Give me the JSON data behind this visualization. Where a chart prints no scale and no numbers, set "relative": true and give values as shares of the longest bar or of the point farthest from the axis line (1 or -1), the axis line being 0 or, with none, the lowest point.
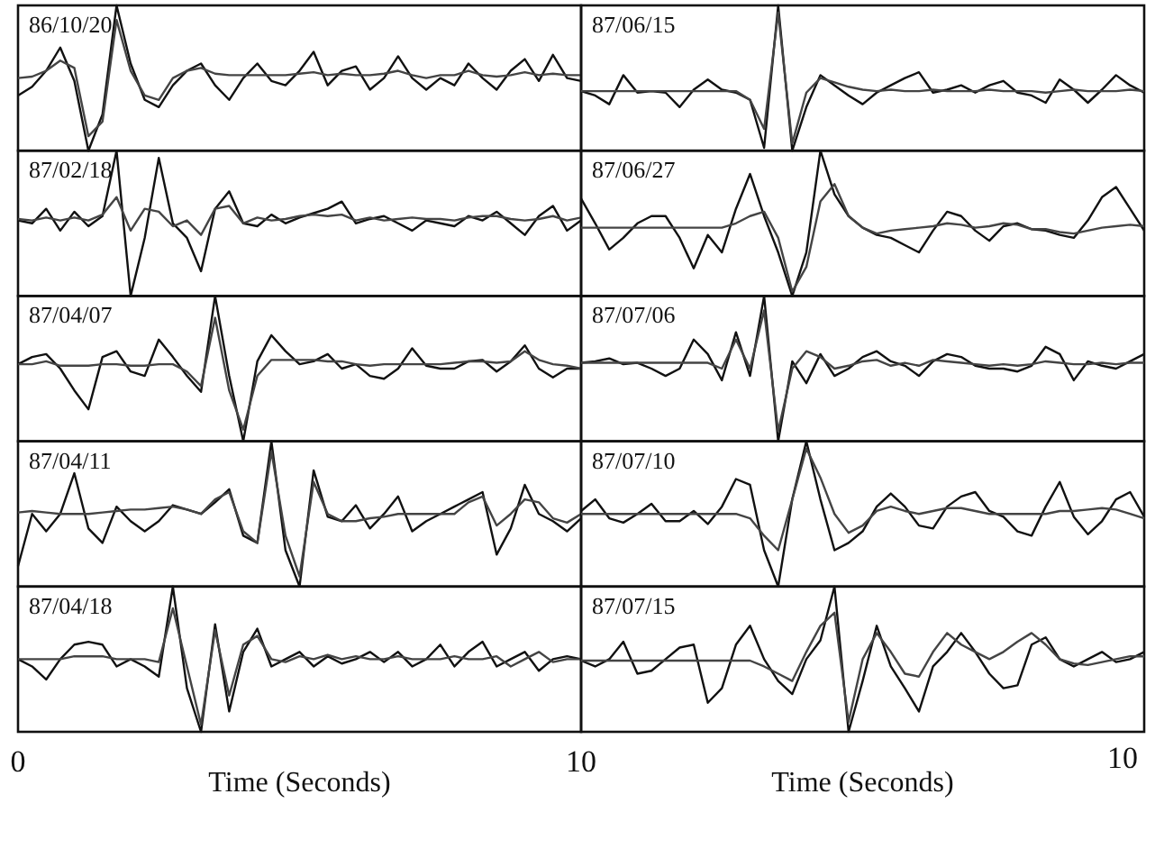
{
  "chart_data": [
    {
      "type": "line",
      "title": "86/10/20",
      "relative": true,
      "categories": [
        null,
        null,
        null,
        null,
        null,
        null,
        null,
        null,
        null,
        null,
        null,
        null,
        null,
        null,
        null,
        null,
        null,
        null,
        null,
        null,
        null,
        null,
        null,
        null,
        null,
        null,
        null,
        null,
        null,
        null,
        null,
        null,
        null,
        null,
        null,
        null,
        null,
        null,
        null,
        null,
        null
      ],
      "series": [
        {
          "color": "#111111",
          "values": [
            0.38,
            0.44,
            0.55,
            0.71,
            0.48,
            0.0,
            0.25,
            1.0,
            0.6,
            0.35,
            0.3,
            0.45,
            0.55,
            0.6,
            0.45,
            0.35,
            0.5,
            0.6,
            0.48,
            0.45,
            0.55,
            0.68,
            0.45,
            0.55,
            0.58,
            0.42,
            0.5,
            0.65,
            0.5,
            0.42,
            0.5,
            0.45,
            0.6,
            0.5,
            0.42,
            0.55,
            0.63,
            0.48,
            0.66,
            0.5,
            0.48
          ]
        },
        {
          "color": "#444444",
          "values": [
            0.5,
            0.51,
            0.55,
            0.62,
            0.57,
            0.1,
            0.2,
            0.9,
            0.55,
            0.38,
            0.35,
            0.5,
            0.55,
            0.57,
            0.53,
            0.52,
            0.52,
            0.52,
            0.52,
            0.52,
            0.53,
            0.54,
            0.52,
            0.53,
            0.52,
            0.52,
            0.53,
            0.55,
            0.52,
            0.5,
            0.52,
            0.52,
            0.55,
            0.52,
            0.51,
            0.52,
            0.54,
            0.52,
            0.53,
            0.52,
            0.52
          ]
        }
      ]
    },
    {
      "type": "line",
      "title": "87/06/15",
      "relative": true,
      "categories": [
        null,
        null,
        null,
        null,
        null,
        null,
        null,
        null,
        null,
        null,
        null,
        null,
        null,
        null,
        null,
        null,
        null,
        null,
        null,
        null,
        null,
        null,
        null,
        null,
        null,
        null,
        null,
        null,
        null,
        null,
        null,
        null,
        null,
        null,
        null,
        null,
        null,
        null,
        null,
        null,
        null
      ],
      "series": [
        {
          "color": "#111111",
          "values": [
            0.41,
            0.38,
            0.32,
            0.52,
            0.4,
            0.41,
            0.4,
            0.3,
            0.42,
            0.49,
            0.42,
            0.4,
            0.35,
            0.02,
            1.0,
            0.0,
            0.3,
            0.52,
            0.45,
            0.38,
            0.32,
            0.4,
            0.45,
            0.5,
            0.54,
            0.4,
            0.42,
            0.45,
            0.4,
            0.45,
            0.48,
            0.4,
            0.38,
            0.33,
            0.49,
            0.42,
            0.33,
            0.42,
            0.52,
            0.45,
            0.4
          ]
        },
        {
          "color": "#444444",
          "values": [
            0.41,
            0.41,
            0.41,
            0.41,
            0.41,
            0.41,
            0.41,
            0.41,
            0.41,
            0.41,
            0.41,
            0.41,
            0.35,
            0.15,
            0.95,
            0.05,
            0.4,
            0.5,
            0.47,
            0.44,
            0.42,
            0.41,
            0.42,
            0.41,
            0.41,
            0.42,
            0.41,
            0.41,
            0.41,
            0.42,
            0.41,
            0.41,
            0.41,
            0.4,
            0.41,
            0.42,
            0.41,
            0.41,
            0.41,
            0.42,
            0.41
          ]
        }
      ]
    },
    {
      "type": "line",
      "title": "87/02/18",
      "relative": true,
      "categories": [
        null,
        null,
        null,
        null,
        null,
        null,
        null,
        null,
        null,
        null,
        null,
        null,
        null,
        null,
        null,
        null,
        null,
        null,
        null,
        null,
        null,
        null,
        null,
        null,
        null,
        null,
        null,
        null,
        null,
        null,
        null,
        null,
        null,
        null,
        null,
        null,
        null,
        null,
        null,
        null,
        null
      ],
      "series": [
        {
          "color": "#111111",
          "values": [
            0.52,
            0.5,
            0.6,
            0.45,
            0.58,
            0.48,
            0.55,
            1.0,
            0.0,
            0.4,
            0.95,
            0.5,
            0.4,
            0.17,
            0.6,
            0.72,
            0.5,
            0.48,
            0.56,
            0.5,
            0.54,
            0.57,
            0.6,
            0.65,
            0.5,
            0.53,
            0.55,
            0.5,
            0.45,
            0.52,
            0.5,
            0.48,
            0.55,
            0.52,
            0.58,
            0.5,
            0.42,
            0.55,
            0.62,
            0.45,
            0.52
          ]
        },
        {
          "color": "#444444",
          "values": [
            0.53,
            0.52,
            0.54,
            0.52,
            0.54,
            0.52,
            0.56,
            0.68,
            0.45,
            0.6,
            0.58,
            0.48,
            0.52,
            0.42,
            0.6,
            0.62,
            0.5,
            0.54,
            0.52,
            0.53,
            0.55,
            0.56,
            0.55,
            0.56,
            0.52,
            0.54,
            0.52,
            0.53,
            0.54,
            0.53,
            0.53,
            0.52,
            0.54,
            0.55,
            0.55,
            0.53,
            0.52,
            0.53,
            0.55,
            0.52,
            0.54
          ]
        }
      ]
    },
    {
      "type": "line",
      "title": "87/06/27",
      "relative": true,
      "categories": [
        null,
        null,
        null,
        null,
        null,
        null,
        null,
        null,
        null,
        null,
        null,
        null,
        null,
        null,
        null,
        null,
        null,
        null,
        null,
        null,
        null,
        null,
        null,
        null,
        null,
        null,
        null,
        null,
        null,
        null,
        null,
        null,
        null,
        null,
        null,
        null,
        null,
        null,
        null,
        null,
        null
      ],
      "series": [
        {
          "color": "#111111",
          "values": [
            0.67,
            0.5,
            0.32,
            0.4,
            0.5,
            0.55,
            0.55,
            0.4,
            0.19,
            0.42,
            0.3,
            0.6,
            0.84,
            0.55,
            0.3,
            0.0,
            0.3,
            1.0,
            0.7,
            0.55,
            0.47,
            0.42,
            0.4,
            0.35,
            0.3,
            0.45,
            0.58,
            0.55,
            0.45,
            0.38,
            0.48,
            0.5,
            0.46,
            0.45,
            0.42,
            0.4,
            0.52,
            0.68,
            0.75,
            0.6,
            0.45
          ]
        },
        {
          "color": "#444444",
          "values": [
            0.47,
            0.47,
            0.47,
            0.47,
            0.47,
            0.47,
            0.47,
            0.47,
            0.47,
            0.47,
            0.47,
            0.5,
            0.55,
            0.58,
            0.4,
            0.03,
            0.2,
            0.65,
            0.77,
            0.55,
            0.47,
            0.43,
            0.45,
            0.46,
            0.47,
            0.48,
            0.5,
            0.49,
            0.47,
            0.48,
            0.5,
            0.49,
            0.46,
            0.46,
            0.44,
            0.43,
            0.45,
            0.47,
            0.48,
            0.49,
            0.48
          ]
        }
      ]
    },
    {
      "type": "line",
      "title": "87/04/07",
      "relative": true,
      "categories": [
        null,
        null,
        null,
        null,
        null,
        null,
        null,
        null,
        null,
        null,
        null,
        null,
        null,
        null,
        null,
        null,
        null,
        null,
        null,
        null,
        null,
        null,
        null,
        null,
        null,
        null,
        null,
        null,
        null,
        null,
        null,
        null,
        null,
        null,
        null,
        null,
        null,
        null,
        null,
        null,
        null
      ],
      "series": [
        {
          "color": "#111111",
          "values": [
            0.53,
            0.58,
            0.6,
            0.5,
            0.35,
            0.22,
            0.58,
            0.62,
            0.48,
            0.45,
            0.7,
            0.58,
            0.45,
            0.34,
            1.0,
            0.45,
            0.0,
            0.55,
            0.73,
            0.62,
            0.53,
            0.55,
            0.6,
            0.5,
            0.53,
            0.45,
            0.43,
            0.5,
            0.64,
            0.52,
            0.5,
            0.5,
            0.55,
            0.56,
            0.48,
            0.55,
            0.66,
            0.5,
            0.44,
            0.5,
            0.5
          ]
        },
        {
          "color": "#444444",
          "values": [
            0.53,
            0.53,
            0.55,
            0.52,
            0.52,
            0.52,
            0.53,
            0.53,
            0.52,
            0.52,
            0.53,
            0.53,
            0.48,
            0.38,
            0.85,
            0.35,
            0.08,
            0.45,
            0.56,
            0.56,
            0.56,
            0.56,
            0.55,
            0.55,
            0.53,
            0.52,
            0.53,
            0.53,
            0.53,
            0.53,
            0.53,
            0.54,
            0.55,
            0.55,
            0.54,
            0.55,
            0.62,
            0.56,
            0.53,
            0.52,
            0.5
          ]
        }
      ]
    },
    {
      "type": "line",
      "title": "87/07/06",
      "relative": true,
      "categories": [
        null,
        null,
        null,
        null,
        null,
        null,
        null,
        null,
        null,
        null,
        null,
        null,
        null,
        null,
        null,
        null,
        null,
        null,
        null,
        null,
        null,
        null,
        null,
        null,
        null,
        null,
        null,
        null,
        null,
        null,
        null,
        null,
        null,
        null,
        null,
        null,
        null,
        null,
        null,
        null,
        null
      ],
      "series": [
        {
          "color": "#111111",
          "values": [
            0.54,
            0.55,
            0.57,
            0.53,
            0.54,
            0.5,
            0.45,
            0.5,
            0.7,
            0.6,
            0.42,
            0.75,
            0.45,
            1.0,
            0.0,
            0.55,
            0.4,
            0.6,
            0.45,
            0.5,
            0.58,
            0.62,
            0.55,
            0.52,
            0.45,
            0.55,
            0.6,
            0.58,
            0.52,
            0.5,
            0.5,
            0.48,
            0.52,
            0.65,
            0.6,
            0.42,
            0.55,
            0.52,
            0.5,
            0.55,
            0.6
          ]
        },
        {
          "color": "#444444",
          "values": [
            0.54,
            0.54,
            0.54,
            0.54,
            0.54,
            0.54,
            0.54,
            0.54,
            0.54,
            0.54,
            0.5,
            0.7,
            0.5,
            0.9,
            0.07,
            0.5,
            0.62,
            0.58,
            0.5,
            0.52,
            0.55,
            0.56,
            0.52,
            0.54,
            0.52,
            0.56,
            0.55,
            0.54,
            0.53,
            0.52,
            0.53,
            0.52,
            0.53,
            0.55,
            0.54,
            0.53,
            0.53,
            0.54,
            0.53,
            0.54,
            0.54
          ]
        }
      ]
    },
    {
      "type": "line",
      "title": "87/04/11",
      "relative": true,
      "categories": [
        null,
        null,
        null,
        null,
        null,
        null,
        null,
        null,
        null,
        null,
        null,
        null,
        null,
        null,
        null,
        null,
        null,
        null,
        null,
        null,
        null,
        null,
        null,
        null,
        null,
        null,
        null,
        null,
        null,
        null,
        null,
        null,
        null,
        null,
        null,
        null,
        null,
        null,
        null,
        null,
        null
      ],
      "series": [
        {
          "color": "#111111",
          "values": [
            0.14,
            0.5,
            0.38,
            0.5,
            0.78,
            0.4,
            0.3,
            0.55,
            0.45,
            0.38,
            0.45,
            0.56,
            0.53,
            0.5,
            0.58,
            0.67,
            0.35,
            0.3,
            1.0,
            0.25,
            0.0,
            0.8,
            0.48,
            0.45,
            0.56,
            0.4,
            0.5,
            0.62,
            0.38,
            0.45,
            0.5,
            0.55,
            0.6,
            0.65,
            0.22,
            0.4,
            0.7,
            0.5,
            0.45,
            0.38,
            0.47
          ]
        },
        {
          "color": "#444444",
          "values": [
            0.51,
            0.52,
            0.51,
            0.5,
            0.5,
            0.5,
            0.51,
            0.52,
            0.53,
            0.53,
            0.54,
            0.55,
            0.53,
            0.5,
            0.6,
            0.65,
            0.38,
            0.3,
            0.93,
            0.35,
            0.07,
            0.72,
            0.5,
            0.45,
            0.45,
            0.47,
            0.48,
            0.5,
            0.5,
            0.5,
            0.5,
            0.5,
            0.58,
            0.62,
            0.42,
            0.5,
            0.6,
            0.58,
            0.47,
            0.44,
            0.5
          ]
        }
      ]
    },
    {
      "type": "line",
      "title": "87/07/10",
      "relative": true,
      "categories": [
        null,
        null,
        null,
        null,
        null,
        null,
        null,
        null,
        null,
        null,
        null,
        null,
        null,
        null,
        null,
        null,
        null,
        null,
        null,
        null,
        null,
        null,
        null,
        null,
        null,
        null,
        null,
        null,
        null,
        null,
        null,
        null,
        null,
        null,
        null,
        null,
        null,
        null,
        null,
        null,
        null
      ],
      "series": [
        {
          "color": "#111111",
          "values": [
            0.52,
            0.6,
            0.47,
            0.44,
            0.5,
            0.57,
            0.45,
            0.45,
            0.52,
            0.43,
            0.55,
            0.74,
            0.7,
            0.25,
            0.0,
            0.6,
            1.0,
            0.6,
            0.25,
            0.3,
            0.38,
            0.55,
            0.64,
            0.55,
            0.42,
            0.4,
            0.55,
            0.62,
            0.65,
            0.52,
            0.48,
            0.38,
            0.35,
            0.55,
            0.72,
            0.48,
            0.36,
            0.45,
            0.6,
            0.65,
            0.48
          ]
        },
        {
          "color": "#444444",
          "values": [
            0.5,
            0.5,
            0.5,
            0.5,
            0.5,
            0.5,
            0.5,
            0.5,
            0.5,
            0.5,
            0.5,
            0.5,
            0.47,
            0.35,
            0.25,
            0.6,
            0.95,
            0.75,
            0.5,
            0.37,
            0.42,
            0.52,
            0.55,
            0.52,
            0.5,
            0.52,
            0.54,
            0.54,
            0.52,
            0.5,
            0.5,
            0.5,
            0.5,
            0.5,
            0.52,
            0.52,
            0.53,
            0.54,
            0.53,
            0.5,
            0.47
          ]
        }
      ]
    },
    {
      "type": "line",
      "title": "87/04/18",
      "xlabel": "Time (Seconds)",
      "relative": true,
      "xlim": [
        0,
        10
      ],
      "xticks": [
        0,
        10
      ],
      "tick_labels": "x",
      "x": [
        0,
        0.25,
        0.5,
        0.75,
        1,
        1.25,
        1.5,
        1.75,
        2,
        2.25,
        2.5,
        2.75,
        3,
        3.25,
        3.5,
        3.75,
        4,
        4.25,
        4.5,
        4.75,
        5,
        5.25,
        5.5,
        5.75,
        6,
        6.25,
        6.5,
        6.75,
        7,
        7.25,
        7.5,
        7.75,
        8,
        8.25,
        8.5,
        8.75,
        9,
        9.25,
        9.5,
        9.75,
        10
      ],
      "series": [
        {
          "color": "#111111",
          "values": [
            0.5,
            0.45,
            0.36,
            0.5,
            0.6,
            0.62,
            0.6,
            0.45,
            0.5,
            0.45,
            0.38,
            1.0,
            0.3,
            0.0,
            0.74,
            0.14,
            0.55,
            0.71,
            0.45,
            0.5,
            0.55,
            0.45,
            0.52,
            0.47,
            0.5,
            0.55,
            0.48,
            0.55,
            0.45,
            0.5,
            0.6,
            0.45,
            0.55,
            0.62,
            0.45,
            0.5,
            0.55,
            0.42,
            0.5,
            0.52,
            0.5
          ]
        },
        {
          "color": "#444444",
          "values": [
            0.5,
            0.5,
            0.5,
            0.5,
            0.52,
            0.52,
            0.52,
            0.5,
            0.5,
            0.5,
            0.48,
            0.85,
            0.45,
            0.05,
            0.7,
            0.25,
            0.6,
            0.66,
            0.5,
            0.48,
            0.52,
            0.5,
            0.53,
            0.5,
            0.52,
            0.5,
            0.5,
            0.52,
            0.5,
            0.5,
            0.5,
            0.52,
            0.5,
            0.5,
            0.52,
            0.45,
            0.5,
            0.55,
            0.48,
            0.5,
            0.5
          ]
        }
      ]
    },
    {
      "type": "line",
      "title": "87/07/15",
      "xlabel": "Time (Seconds)",
      "annotations": [
        "10"
      ],
      "relative": true,
      "categories": [
        null,
        null,
        null,
        null,
        null,
        null,
        null,
        null,
        null,
        null,
        null,
        null,
        null,
        null,
        null,
        null,
        null,
        null,
        null,
        null,
        null,
        null,
        null,
        null,
        null,
        null,
        null,
        null,
        null,
        null,
        null,
        null,
        null,
        null,
        null,
        null,
        null,
        null,
        null,
        null,
        null
      ],
      "series": [
        {
          "color": "#111111",
          "values": [
            0.49,
            0.45,
            0.5,
            0.62,
            0.4,
            0.42,
            0.5,
            0.58,
            0.6,
            0.2,
            0.3,
            0.6,
            0.73,
            0.5,
            0.35,
            0.26,
            0.5,
            0.63,
            1.0,
            0.0,
            0.35,
            0.73,
            0.45,
            0.3,
            0.14,
            0.45,
            0.55,
            0.68,
            0.55,
            0.4,
            0.3,
            0.32,
            0.6,
            0.65,
            0.5,
            0.45,
            0.5,
            0.55,
            0.48,
            0.5,
            0.55
          ]
        },
        {
          "color": "#444444",
          "values": [
            0.49,
            0.49,
            0.49,
            0.49,
            0.49,
            0.49,
            0.49,
            0.49,
            0.49,
            0.49,
            0.49,
            0.49,
            0.49,
            0.45,
            0.4,
            0.35,
            0.55,
            0.73,
            0.82,
            0.07,
            0.5,
            0.68,
            0.55,
            0.4,
            0.38,
            0.55,
            0.68,
            0.6,
            0.55,
            0.5,
            0.55,
            0.62,
            0.68,
            0.6,
            0.5,
            0.47,
            0.46,
            0.48,
            0.5,
            0.52,
            0.52
          ]
        }
      ]
    }
  ]
}
